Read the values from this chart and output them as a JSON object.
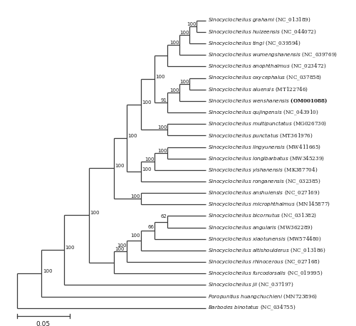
{
  "scale_bar_label": "0.05",
  "background_color": "#ffffff",
  "line_color": "#3a3a3a",
  "text_color": "#1a1a1a",
  "figsize": [
    5.0,
    4.58
  ],
  "dpi": 100,
  "taxa": [
    {
      "name": "Sinocyclocheilus grahami",
      "accession": "NC_013189",
      "y": 26,
      "bold": false
    },
    {
      "name": "Sinocyclocheilus huizeensis",
      "accession": "NC_044072",
      "y": 25,
      "bold": false
    },
    {
      "name": "Sinocyclocheilus tingi",
      "accession": "NC_039594",
      "y": 24,
      "bold": false
    },
    {
      "name": "Sinocyclocheilus wumengshanensis",
      "accession": "NC_039769",
      "y": 23,
      "bold": false
    },
    {
      "name": "Sinocyclocheilus anophthalmus",
      "accession": "NC_023472",
      "y": 22,
      "bold": false
    },
    {
      "name": "Sinocyclocheilus oxycephalus",
      "accession": "NC_037858",
      "y": 21,
      "bold": false
    },
    {
      "name": "Sinocyclocheilus aluensis",
      "accession": "MT122746",
      "y": 20,
      "bold": false
    },
    {
      "name": "Sinocyclocheilus wenshanensis",
      "accession": "OM001088",
      "y": 19,
      "bold": true
    },
    {
      "name": "Sinocyclocheilus qujingensis",
      "accession": "NC_043910",
      "y": 18,
      "bold": false
    },
    {
      "name": "Sinocyclocheilus multipunctatus",
      "accession": "MG026730",
      "y": 17,
      "bold": false
    },
    {
      "name": "Sinocyclocheilus punctatus",
      "accession": "MT361976",
      "y": 16,
      "bold": false
    },
    {
      "name": "Sinocyclocheilus lingyunensis",
      "accession": "MW411665",
      "y": 15,
      "bold": false
    },
    {
      "name": "Sinocyclocheilus longibarbatus",
      "accession": "MW345239",
      "y": 14,
      "bold": false
    },
    {
      "name": "Sinocyclocheilus yishanensis",
      "accession": "MK387704",
      "y": 13,
      "bold": false
    },
    {
      "name": "Sinocyclocheilus ronganensis",
      "accession": "NC_032385",
      "y": 12,
      "bold": false
    },
    {
      "name": "Sinocyclocheilus anshuiensis",
      "accession": "NC_027169",
      "y": 11,
      "bold": false
    },
    {
      "name": "Sinocyclocheilus microphthalmus",
      "accession": "MN145877",
      "y": 10,
      "bold": false
    },
    {
      "name": "Sinocyclocheilus bicornutus",
      "accession": "NC_031382",
      "y": 9,
      "bold": false
    },
    {
      "name": "Sinocyclocheilus angularis",
      "accession": "MW362289",
      "y": 8,
      "bold": false
    },
    {
      "name": "Sinocyclocheilus xiaotunensis",
      "accession": "MW574480",
      "y": 7,
      "bold": false
    },
    {
      "name": "Sinocyclocheilus altishoulderus",
      "accession": "NC_013186",
      "y": 6,
      "bold": false
    },
    {
      "name": "Sinocyclocheilus rhinocerous",
      "accession": "NC_027168",
      "y": 5,
      "bold": false
    },
    {
      "name": "Sinocyclocheilus furcodorsalis",
      "accession": "NC_019995",
      "y": 4,
      "bold": false
    },
    {
      "name": "Sinocyclocheilus jii",
      "accession": "NC_037197",
      "y": 3,
      "bold": false
    },
    {
      "name": "Poropuntius huangchuchieni",
      "accession": "MN723896",
      "y": 2,
      "bold": false
    },
    {
      "name": "Barbodes binotatus",
      "accession": "NC_034755",
      "y": 1,
      "bold": false
    }
  ]
}
